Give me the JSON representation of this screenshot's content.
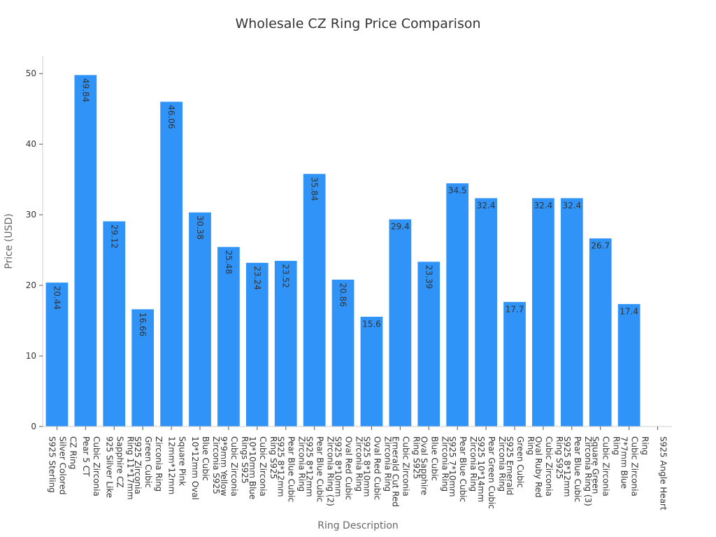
{
  "chart_data": {
    "type": "bar",
    "title": "Wholesale CZ Ring Price Comparison",
    "xlabel": "Ring Description",
    "ylabel": "Price (USD)",
    "ylim": [
      0,
      52.5
    ],
    "yticks": [
      0,
      10,
      20,
      30,
      40,
      50
    ],
    "grid": false,
    "legend": "none",
    "bar_color": "#2f93f8",
    "categories": [
      "S925 Sterling Silver Colored CZ Ring",
      "Pear 5 CT Cubic Zirconia",
      "925 Silver Like Sapphire CZ Ring 11*17mm",
      "S925 Zirconia Green Cubic Zirconia Ring",
      "12mm*12mm Square Pink",
      "10*12mm Oval Blue Cubic",
      "9*9mm Yellow Cubic Zirconia",
      "10*10mm Blue Cubic Zirconia",
      "S925 8*12mm Pear Blue Cubic",
      "S925 8*12mm Pear Blue Cubic",
      "S925 8*10mm Oval Red Cubic",
      "S925 8*10mm Oval Red Cubic",
      "Emerald Cut Red Cubic Zirconia",
      "Oval Sapphire Blue Cubic",
      "S925 7*10mm Pear Blue Cubic",
      "S925 10*14mm Pear Green Cubic",
      "S925 Emerald Green Cubic",
      "Oval Ruby Red Cubic Zirconia",
      "S925 8*12mm Pear Blue Cubic",
      "Square Green Cubic Zirconia",
      "7*7mm Blue Cubic Zirconia",
      "S925 Angle Heart"
    ],
    "tick_labels": [
      [
        "S925 Sterling",
        "Silver Colored",
        "CZ Ring"
      ],
      [
        "Pear 5 CT",
        "Cubic Zirconia"
      ],
      [
        "925 Silver Like",
        "Sapphire CZ",
        "Ring 11*17mm"
      ],
      [
        "S925 Zirconia",
        "Green Cubic",
        "Zirconia Ring"
      ],
      [
        "12mm*12mm",
        "Square Pink"
      ],
      [
        "10*12mm Oval",
        "Blue Cubic",
        "Zirconia S925"
      ],
      [
        "9*9mm Yellow",
        "Cubic Zirconia",
        "Rings S925"
      ],
      [
        "10*10mm Blue",
        "Cubic Zirconia",
        "Ring S925"
      ],
      [
        "S925 8*12mm",
        "Pear Blue Cubic",
        "Zirconia Ring"
      ],
      [
        "S925 8*12mm",
        "Pear Blue Cubic",
        "Zirconia Ring (2)"
      ],
      [
        "S925 8*10mm",
        "Oval Red Cubic",
        "Zirconia Ring"
      ],
      [
        "S925 8*10mm",
        "Oval Red Cubic",
        "Zirconia Ring"
      ],
      [
        "Emerald Cut Red",
        "Cubic Zirconia",
        "Ring S925"
      ],
      [
        "Oval Sapphire",
        "Blue Cubic",
        "Zirconia Ring"
      ],
      [
        "S925 7*10mm",
        "Pear Blue Cubic",
        "Zirconia Ring"
      ],
      [
        "S925 10*14mm",
        "Pear Green Cubic",
        "Zirconia Ring"
      ],
      [
        "S925 Emerald",
        "Green Cubic",
        "Ring"
      ],
      [
        "Oval Ruby Red",
        "Cubic Zirconia",
        "Ring S925"
      ],
      [
        "S925 8*12mm",
        "Pear Blue Cubic",
        "Zirconia Ring (3)"
      ],
      [
        "Square Green",
        "Cubic Zirconia",
        "Ring"
      ],
      [
        "7*7mm Blue",
        "Cubic Zirconia",
        "Ring"
      ],
      [
        "S925 Angle Heart"
      ]
    ],
    "values": [
      20.44,
      49.84,
      29.12,
      16.66,
      46.06,
      30.38,
      25.48,
      23.24,
      23.52,
      35.84,
      20.86,
      15.6,
      29.4,
      23.39,
      34.5,
      32.4,
      17.7,
      32.4,
      32.4,
      26.7,
      17.4,
      0
    ],
    "data_labels": [
      "20.44",
      "49.84",
      "29.12",
      "16.66",
      "46.06",
      "30.38",
      "25.48",
      "23.24",
      "23.52",
      "35.84",
      "20.86",
      "15.6",
      "29.4",
      "23.39",
      "34.5",
      "32.4",
      "17.7",
      "32.4",
      "32.4",
      "26.7",
      "17.4",
      ""
    ],
    "label_rotated": [
      true,
      true,
      true,
      true,
      true,
      true,
      true,
      true,
      true,
      true,
      true,
      false,
      false,
      true,
      false,
      false,
      false,
      false,
      false,
      false,
      false,
      false
    ]
  }
}
